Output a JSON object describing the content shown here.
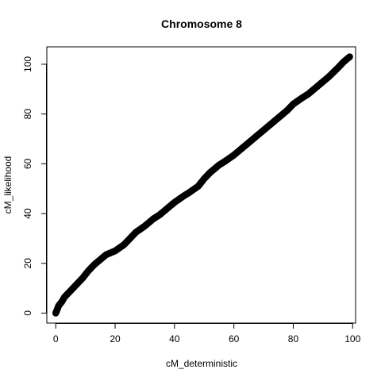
{
  "chart_data": {
    "type": "scatter",
    "title": "Chromosome 8",
    "xlabel": "cM_deterministic",
    "ylabel": "cM_likelihood",
    "xlim": [
      -3,
      101
    ],
    "ylim": [
      -4,
      107
    ],
    "x_ticks": [
      0,
      20,
      40,
      60,
      80,
      100
    ],
    "y_ticks": [
      0,
      20,
      40,
      60,
      80,
      100
    ],
    "grid": false,
    "legend": "none",
    "marker_color": "#000000",
    "anchor_points": [
      [
        0,
        0
      ],
      [
        0.5,
        1.5
      ],
      [
        1,
        3
      ],
      [
        2,
        4.5
      ],
      [
        3,
        6.5
      ],
      [
        5,
        9
      ],
      [
        7,
        11.5
      ],
      [
        9,
        14
      ],
      [
        11,
        17
      ],
      [
        13,
        19.5
      ],
      [
        15,
        21.5
      ],
      [
        17,
        23.5
      ],
      [
        20,
        25
      ],
      [
        23,
        27.5
      ],
      [
        25,
        30
      ],
      [
        27,
        32.5
      ],
      [
        30,
        35
      ],
      [
        33,
        38
      ],
      [
        35,
        39.5
      ],
      [
        38,
        42.5
      ],
      [
        40,
        44.5
      ],
      [
        43,
        47
      ],
      [
        45,
        48.5
      ],
      [
        48,
        51
      ],
      [
        50,
        54
      ],
      [
        52,
        56.5
      ],
      [
        55,
        59.5
      ],
      [
        57,
        61
      ],
      [
        60,
        63.5
      ],
      [
        62,
        65.5
      ],
      [
        65,
        68.5
      ],
      [
        68,
        71.5
      ],
      [
        70,
        73.5
      ],
      [
        73,
        76.5
      ],
      [
        75,
        78.5
      ],
      [
        78,
        81.5
      ],
      [
        80,
        84
      ],
      [
        83,
        86.5
      ],
      [
        85,
        88
      ],
      [
        88,
        91
      ],
      [
        90,
        93
      ],
      [
        92,
        95
      ],
      [
        95,
        98.5
      ],
      [
        97,
        101
      ],
      [
        99,
        103
      ]
    ]
  }
}
